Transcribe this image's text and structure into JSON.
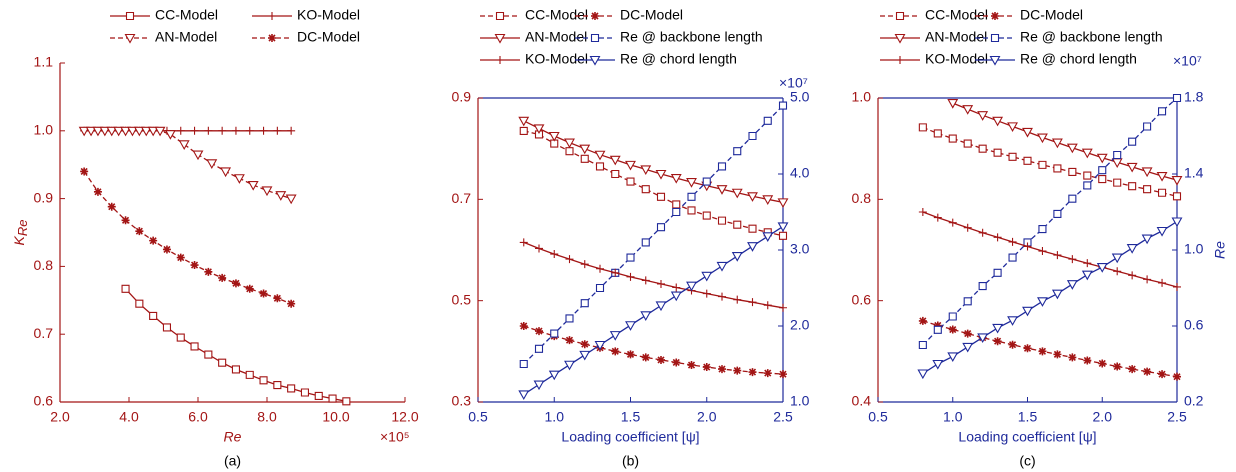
{
  "chart_data": [
    {
      "type": "line",
      "caption": "(a)",
      "xlabel": "Re",
      "ylabel": "K",
      "ylabel_subscript": "Re",
      "x_multiplier": "×10⁵",
      "xcolor": "#a31515",
      "ycolor": "#a31515",
      "box": false,
      "xlim": [
        2,
        12
      ],
      "xticks": [
        {
          "value": 2,
          "label": "2.0"
        },
        {
          "value": 4,
          "label": "4.0"
        },
        {
          "value": 6,
          "label": "6.0"
        },
        {
          "value": 8,
          "label": "8.0"
        },
        {
          "value": 10,
          "label": "10.0"
        },
        {
          "value": 12,
          "label": "12.0"
        }
      ],
      "ylim": [
        0.6,
        1.1
      ],
      "yticks": [
        0.6,
        0.7,
        0.8,
        0.9,
        {
          "value": 1,
          "label": "1.0"
        },
        1.1
      ],
      "series": [
        {
          "name": "CC-Model",
          "color": "#a31515",
          "marker": "square",
          "dashed": false,
          "x": [
            3.9,
            4.3,
            4.7,
            5.1,
            5.5,
            5.9,
            6.3,
            6.7,
            7.1,
            7.5,
            7.9,
            8.3,
            8.7,
            9.1,
            9.5,
            9.9,
            10.3
          ],
          "values": [
            0.767,
            0.745,
            0.727,
            0.71,
            0.695,
            0.682,
            0.67,
            0.658,
            0.648,
            0.64,
            0.632,
            0.625,
            0.62,
            0.614,
            0.609,
            0.605,
            0.601
          ]
        },
        {
          "name": "KO-Model",
          "color": "#a31515",
          "marker": "plus",
          "dashed": false,
          "x": [
            2.7,
            3.1,
            3.5,
            3.9,
            4.3,
            4.7,
            5.1,
            5.5,
            5.9,
            6.3,
            6.7,
            7.1,
            7.5,
            7.9,
            8.3,
            8.7
          ],
          "values": [
            1,
            1,
            1,
            1,
            1,
            1,
            1,
            1,
            1,
            1,
            1,
            1,
            1,
            1,
            1,
            1
          ]
        },
        {
          "name": "AN-Model",
          "color": "#a31515",
          "marker": "triangle",
          "dashed": true,
          "x": [
            2.7,
            2.9,
            3.1,
            3.3,
            3.5,
            3.7,
            3.9,
            4.1,
            4.3,
            4.5,
            4.7,
            4.9,
            5.2,
            5.6,
            6.0,
            6.4,
            6.8,
            7.2,
            7.6,
            8.0,
            8.4,
            8.7
          ],
          "values": [
            1,
            1,
            1,
            1,
            1,
            1,
            1,
            1,
            1,
            1,
            1,
            1,
            0.995,
            0.98,
            0.965,
            0.952,
            0.94,
            0.93,
            0.92,
            0.912,
            0.905,
            0.9
          ]
        },
        {
          "name": "DC-Model",
          "color": "#a31515",
          "marker": "star",
          "dashed": true,
          "x": [
            2.7,
            3.1,
            3.5,
            3.9,
            4.3,
            4.7,
            5.1,
            5.5,
            5.9,
            6.3,
            6.7,
            7.1,
            7.5,
            7.9,
            8.3,
            8.7
          ],
          "values": [
            0.94,
            0.91,
            0.888,
            0.868,
            0.852,
            0.838,
            0.825,
            0.813,
            0.802,
            0.792,
            0.783,
            0.775,
            0.767,
            0.76,
            0.753,
            0.745
          ]
        }
      ]
    },
    {
      "type": "line",
      "caption": "(b)",
      "xlabel": "Loading coefficient [ψ]",
      "y2_multiplier": "×10⁷",
      "xcolor": "#1f2a9b",
      "ycolor": "#a31515",
      "y2color": "#1f2a9b",
      "box": true,
      "xlim": [
        0.5,
        2.5
      ],
      "xticks": [
        0.5,
        {
          "value": 1,
          "label": "1.0"
        },
        1.5,
        {
          "value": 2,
          "label": "2.0"
        },
        2.5
      ],
      "ylim": [
        0.3,
        0.9
      ],
      "yticks": [
        0.3,
        0.5,
        0.7,
        0.9
      ],
      "y2lim": [
        1,
        5
      ],
      "y2ticks": [
        {
          "value": 1,
          "label": "1.0"
        },
        {
          "value": 2,
          "label": "2.0"
        },
        {
          "value": 3,
          "label": "3.0"
        },
        {
          "value": 4,
          "label": "4.0"
        },
        {
          "value": 5,
          "label": "5.0"
        }
      ],
      "x": [
        0.8,
        0.9,
        1.0,
        1.1,
        1.2,
        1.3,
        1.4,
        1.5,
        1.6,
        1.7,
        1.8,
        1.9,
        2.0,
        2.1,
        2.2,
        2.3,
        2.4,
        2.5
      ],
      "series": [
        {
          "name": "CC-Model",
          "color": "#a31515",
          "marker": "square",
          "dashed": true,
          "values": [
            0.835,
            0.828,
            0.81,
            0.795,
            0.78,
            0.765,
            0.75,
            0.735,
            0.72,
            0.705,
            0.69,
            0.678,
            0.668,
            0.658,
            0.65,
            0.642,
            0.635,
            0.628
          ]
        },
        {
          "name": "DC-Model",
          "color": "#a31515",
          "marker": "star",
          "dashed": true,
          "values": [
            0.45,
            0.44,
            0.43,
            0.422,
            0.414,
            0.407,
            0.4,
            0.394,
            0.388,
            0.383,
            0.378,
            0.373,
            0.369,
            0.365,
            0.362,
            0.359,
            0.357,
            0.355
          ]
        },
        {
          "name": "AN-Model",
          "color": "#a31515",
          "marker": "triangle",
          "dashed": false,
          "values": [
            0.855,
            0.84,
            0.825,
            0.812,
            0.8,
            0.788,
            0.778,
            0.768,
            0.759,
            0.75,
            0.742,
            0.734,
            0.727,
            0.72,
            0.713,
            0.706,
            0.7,
            0.694
          ]
        },
        {
          "name": "Re @ backbone length",
          "color": "#1f2a9b",
          "marker": "square",
          "dashed": true,
          "axis": "y2",
          "values": [
            1.5,
            1.7,
            1.9,
            2.1,
            2.3,
            2.5,
            2.7,
            2.9,
            3.1,
            3.3,
            3.5,
            3.7,
            3.9,
            4.1,
            4.3,
            4.5,
            4.7,
            4.9
          ]
        },
        {
          "name": "KO-Model",
          "color": "#a31515",
          "marker": "plus",
          "dashed": false,
          "values": [
            0.615,
            0.603,
            0.592,
            0.582,
            0.572,
            0.563,
            0.555,
            0.547,
            0.54,
            0.533,
            0.526,
            0.52,
            0.514,
            0.508,
            0.502,
            0.497,
            0.491,
            0.486
          ]
        },
        {
          "name": "Re @ chord length",
          "color": "#1f2a9b",
          "marker": "triangle",
          "dashed": false,
          "axis": "y2",
          "values": [
            1.1,
            1.23,
            1.36,
            1.49,
            1.62,
            1.75,
            1.88,
            2.01,
            2.14,
            2.27,
            2.4,
            2.53,
            2.66,
            2.79,
            2.92,
            3.05,
            3.18,
            3.31
          ]
        }
      ]
    },
    {
      "type": "line",
      "caption": "(c)",
      "xlabel": "Loading coefficient [ψ]",
      "y2label": "Re",
      "y2_multiplier": "×10⁷",
      "xcolor": "#1f2a9b",
      "ycolor": "#a31515",
      "y2color": "#1f2a9b",
      "box": true,
      "xlim": [
        0.5,
        2.5
      ],
      "xticks": [
        0.5,
        {
          "value": 1,
          "label": "1.0"
        },
        1.5,
        {
          "value": 2,
          "label": "2.0"
        },
        2.5
      ],
      "ylim": [
        0.4,
        1
      ],
      "yticks": [
        0.4,
        0.6,
        0.8,
        {
          "value": 1,
          "label": "1.0"
        }
      ],
      "y2lim": [
        0.2,
        1.8
      ],
      "y2ticks": [
        0.2,
        0.6,
        {
          "value": 1,
          "label": "1.0"
        },
        1.4,
        1.8
      ],
      "x": [
        0.8,
        0.9,
        1.0,
        1.1,
        1.2,
        1.3,
        1.4,
        1.5,
        1.6,
        1.7,
        1.8,
        1.9,
        2.0,
        2.1,
        2.2,
        2.3,
        2.4,
        2.5
      ],
      "series": [
        {
          "name": "CC-Model",
          "color": "#a31515",
          "marker": "square",
          "dashed": true,
          "values": [
            0.942,
            0.93,
            0.92,
            0.91,
            0.9,
            0.892,
            0.884,
            0.876,
            0.868,
            0.861,
            0.854,
            0.847,
            0.84,
            0.833,
            0.826,
            0.82,
            0.813,
            0.806
          ]
        },
        {
          "name": "DC-Model",
          "color": "#a31515",
          "marker": "star",
          "dashed": true,
          "values": [
            0.56,
            0.551,
            0.543,
            0.535,
            0.527,
            0.52,
            0.513,
            0.506,
            0.5,
            0.494,
            0.488,
            0.482,
            0.476,
            0.47,
            0.465,
            0.46,
            0.455,
            0.45
          ]
        },
        {
          "name": "AN-Model",
          "color": "#a31515",
          "marker": "triangle",
          "dashed": false,
          "values": [
            null,
            null,
            0.99,
            0.978,
            0.966,
            0.955,
            0.944,
            0.933,
            0.922,
            0.912,
            0.902,
            0.892,
            0.882,
            0.873,
            0.864,
            0.855,
            0.846,
            0.838
          ]
        },
        {
          "name": "Re @ backbone length",
          "color": "#1f2a9b",
          "marker": "square",
          "dashed": true,
          "axis": "y2",
          "values": [
            0.5,
            0.58,
            0.65,
            0.73,
            0.81,
            0.88,
            0.96,
            1.04,
            1.11,
            1.19,
            1.27,
            1.34,
            1.42,
            1.5,
            1.57,
            1.65,
            1.73,
            1.8
          ]
        },
        {
          "name": "KO-Model",
          "color": "#a31515",
          "marker": "plus",
          "dashed": false,
          "values": [
            0.775,
            0.764,
            0.754,
            0.744,
            0.734,
            0.725,
            0.716,
            0.707,
            0.698,
            0.69,
            0.682,
            0.674,
            0.666,
            0.658,
            0.65,
            0.642,
            0.635,
            0.627
          ]
        },
        {
          "name": "Re @ chord length",
          "color": "#1f2a9b",
          "marker": "triangle",
          "dashed": false,
          "axis": "y2",
          "values": [
            0.35,
            0.4,
            0.44,
            0.49,
            0.54,
            0.59,
            0.63,
            0.68,
            0.73,
            0.77,
            0.82,
            0.87,
            0.91,
            0.96,
            1.01,
            1.06,
            1.1,
            1.15
          ]
        }
      ]
    }
  ]
}
